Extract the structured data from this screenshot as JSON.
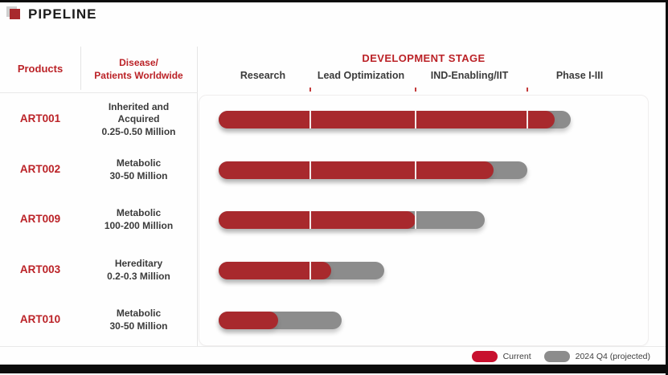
{
  "title": "PIPELINE",
  "columns": {
    "products": "Products",
    "disease_line1": "Disease/",
    "disease_line2": "Patients Worldwide"
  },
  "stage_header": "DEVELOPMENT STAGE",
  "legend": [
    {
      "label": "Current",
      "color": "#c8102e"
    },
    {
      "label": "2024 Q4 (projected)",
      "color": "#8c8c8c"
    }
  ],
  "colors": {
    "bar_current": "#a8292d",
    "bar_projected": "#8c8c8c",
    "accent_red": "#bb2227",
    "dark_text": "#3b3b3b"
  },
  "chart_data": {
    "type": "bar",
    "orientation": "horizontal",
    "title": "PIPELINE",
    "stage_axis": {
      "min": 0,
      "max": 4,
      "units": "development stage (0=start Research, 4=end Phase I-III)"
    },
    "stages": [
      "Research",
      "Lead Optimization",
      "IND-Enabling/IIT",
      "Phase I-III"
    ],
    "series": [
      {
        "name": "Current",
        "color": "#a8292d"
      },
      {
        "name": "2024 Q4 (projected)",
        "color": "#8c8c8c"
      }
    ],
    "legend_position": "bottom-right",
    "products": [
      {
        "product": "ART001",
        "disease": "Inherited and Acquired",
        "patients_worldwide": "0.25-0.50 Million",
        "lines": [
          "Inherited and",
          "Acquired",
          "0.25-0.50 Million"
        ],
        "current_stage": 3.25,
        "projected_stage": 3.4
      },
      {
        "product": "ART002",
        "disease": "Metabolic",
        "patients_worldwide": "30-50 Million",
        "lines": [
          "Metabolic",
          "30-50 Million"
        ],
        "current_stage": 2.7,
        "projected_stage": 3.0
      },
      {
        "product": "ART009",
        "disease": "Metabolic",
        "patients_worldwide": "100-200 Million",
        "lines": [
          "Metabolic",
          "100-200 Million"
        ],
        "current_stage": 2.0,
        "projected_stage": 2.62
      },
      {
        "product": "ART003",
        "disease": "Hereditary",
        "patients_worldwide": "0.2-0.3 Million",
        "lines": [
          "Hereditary",
          "0.2-0.3 Million"
        ],
        "current_stage": 1.2,
        "projected_stage": 1.7
      },
      {
        "product": "ART010",
        "disease": "Metabolic",
        "patients_worldwide": "30-50 Million",
        "lines": [
          "Metabolic",
          "30-50 Million"
        ],
        "current_stage": 0.65,
        "projected_stage": 1.3
      }
    ]
  }
}
